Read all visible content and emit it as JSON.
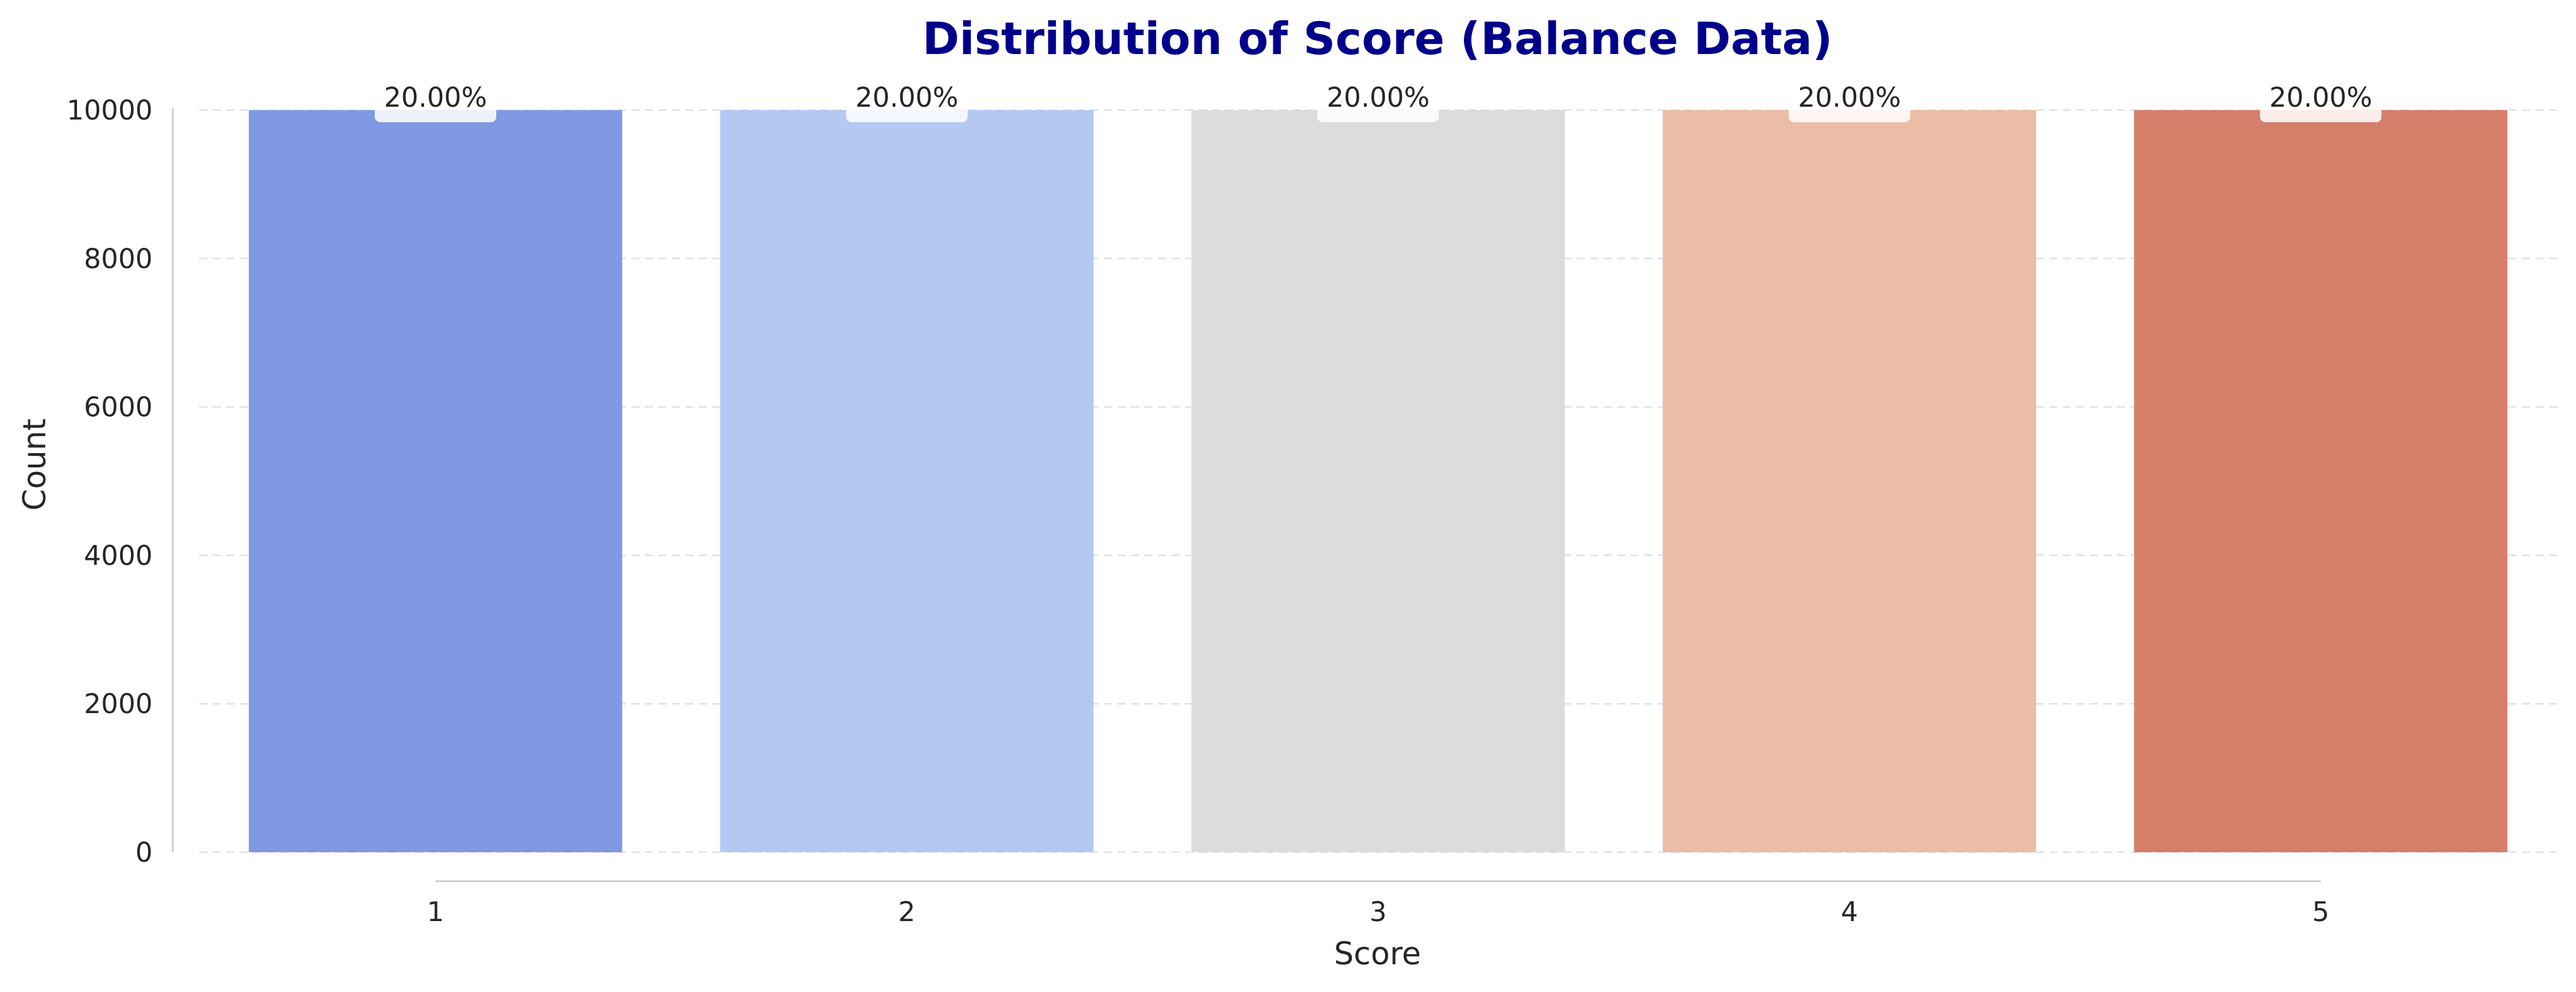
{
  "chart_data": {
    "type": "bar",
    "title": "Distribution of Score (Balance Data)",
    "xlabel": "Score",
    "ylabel": "Count",
    "categories": [
      "1",
      "2",
      "3",
      "4",
      "5"
    ],
    "values": [
      10000,
      10000,
      10000,
      10000,
      10000
    ],
    "data_labels": [
      "20.00%",
      "20.00%",
      "20.00%",
      "20.00%",
      "20.00%"
    ],
    "bar_colors": [
      "#7f9ae2",
      "#b5c8f2",
      "#dcdcdc",
      "#ebbca6",
      "#d57f6b"
    ],
    "title_color": "#00008b",
    "ylim": [
      0,
      10000
    ],
    "yticks": [
      0,
      2000,
      4000,
      6000,
      8000,
      10000
    ],
    "grid": "y-dashed",
    "legend": "none"
  }
}
